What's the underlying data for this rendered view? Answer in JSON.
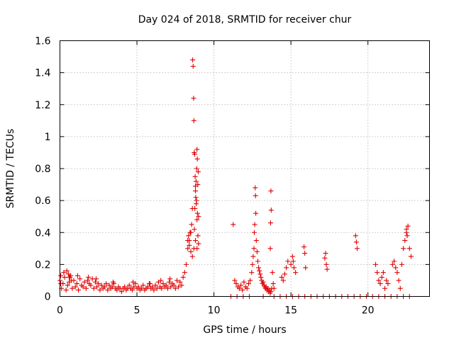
{
  "chart_data": {
    "type": "scatter",
    "title": "Day 024 of 2018, SRMTID for receiver chur",
    "xlabel": "GPS time / hours",
    "ylabel": "SRMTID / TECUs",
    "xlim": [
      0,
      24
    ],
    "ylim": [
      0,
      1.6
    ],
    "xticks": [
      0,
      5,
      10,
      15,
      20
    ],
    "xtick_labels": [
      "0",
      "5",
      "10",
      "15",
      "20"
    ],
    "yticks": [
      0,
      0.2,
      0.4,
      0.6,
      0.8,
      1.0,
      1.2,
      1.4,
      1.6
    ],
    "ytick_labels": [
      "0",
      "0.2",
      "0.4",
      "0.6",
      "0.8",
      "1",
      "1.2",
      "1.4",
      "1.6"
    ],
    "grid": true,
    "marker": "+",
    "series": [
      {
        "name": "SRMTID",
        "color": "#e00000",
        "x": [
          0.0,
          0.1,
          0.2,
          0.3,
          0.4,
          0.5,
          0.6,
          0.7,
          0.8,
          0.9,
          1.0,
          1.1,
          1.2,
          1.3,
          1.4,
          1.5,
          1.6,
          1.7,
          1.8,
          1.9,
          2.0,
          2.1,
          2.2,
          2.3,
          2.4,
          2.5,
          2.6,
          2.7,
          2.8,
          2.9,
          3.0,
          3.1,
          3.2,
          3.3,
          3.4,
          3.5,
          3.6,
          3.7,
          3.8,
          3.9,
          4.0,
          4.1,
          4.2,
          4.3,
          4.4,
          4.5,
          4.6,
          4.7,
          4.8,
          4.9,
          5.0,
          5.1,
          5.2,
          5.3,
          5.4,
          5.5,
          5.6,
          5.7,
          5.8,
          5.9,
          6.0,
          6.1,
          6.2,
          6.3,
          6.4,
          6.5,
          6.6,
          6.7,
          6.8,
          6.9,
          7.0,
          7.1,
          7.2,
          7.3,
          7.4,
          7.5,
          7.6,
          7.7,
          7.8,
          7.9,
          8.0,
          8.1,
          8.2,
          8.3,
          8.4,
          8.5,
          8.6,
          8.7,
          8.8,
          8.9,
          9.0,
          0.05,
          0.25,
          0.45,
          0.6,
          0.75,
          1.15,
          1.85,
          2.35,
          3.45,
          4.75,
          5.85,
          6.55,
          7.15,
          0.55,
          0.65,
          0.05,
          8.3,
          8.35,
          8.4,
          8.45,
          8.5,
          8.55,
          8.6,
          8.62,
          8.65,
          8.68,
          8.7,
          8.72,
          8.75,
          8.78,
          8.8,
          8.82,
          8.85,
          8.88,
          8.9,
          8.92,
          8.95,
          8.98,
          9.0,
          8.73,
          8.76,
          8.8,
          8.84,
          8.87,
          8.9,
          8.93,
          8.96,
          11.25,
          11.35,
          11.45,
          11.55,
          11.65,
          11.75,
          11.85,
          11.95,
          12.05,
          12.15,
          12.25,
          12.35,
          12.45,
          12.5,
          12.55,
          12.6,
          12.62,
          12.65,
          12.68,
          12.7,
          12.72,
          12.75,
          12.8,
          12.85,
          12.9,
          12.95,
          13.0,
          13.05,
          13.1,
          13.15,
          13.2,
          13.25,
          13.3,
          13.35,
          13.4,
          13.45,
          13.5,
          13.55,
          13.6,
          13.65,
          13.7,
          13.75,
          13.8,
          13.85,
          13.9,
          13.7,
          13.72,
          13.68,
          13.66,
          14.4,
          14.5,
          14.6,
          14.7,
          14.8,
          15.0,
          15.1,
          15.15,
          15.2,
          15.3,
          15.85,
          15.9,
          15.95,
          17.2,
          17.25,
          17.3,
          17.35,
          19.2,
          19.25,
          19.3,
          20.5,
          20.6,
          20.7,
          20.8,
          20.9,
          21.0,
          21.1,
          21.2,
          21.3,
          21.6,
          21.7,
          21.8,
          21.9,
          22.0,
          22.1,
          22.2,
          22.3,
          22.4,
          22.5,
          22.6,
          22.7,
          22.8,
          22.5,
          22.55,
          11.1,
          11.5,
          11.9,
          12.3,
          13.2,
          13.9,
          14.3,
          14.7,
          15.1,
          15.5,
          15.9,
          16.3,
          16.7,
          17.1,
          17.5,
          17.9,
          18.3,
          18.7,
          19.1,
          19.5,
          19.9,
          20.3,
          20.7,
          21.1,
          21.5,
          21.9,
          22.3,
          22.7
        ],
        "y": [
          0.1,
          0.05,
          0.08,
          0.12,
          0.04,
          0.07,
          0.09,
          0.13,
          0.05,
          0.1,
          0.06,
          0.08,
          0.04,
          0.11,
          0.07,
          0.06,
          0.09,
          0.05,
          0.1,
          0.08,
          0.07,
          0.11,
          0.05,
          0.09,
          0.06,
          0.08,
          0.04,
          0.07,
          0.05,
          0.06,
          0.08,
          0.04,
          0.07,
          0.05,
          0.06,
          0.08,
          0.05,
          0.04,
          0.06,
          0.05,
          0.03,
          0.05,
          0.06,
          0.04,
          0.05,
          0.07,
          0.05,
          0.04,
          0.06,
          0.08,
          0.05,
          0.06,
          0.04,
          0.05,
          0.07,
          0.04,
          0.05,
          0.06,
          0.08,
          0.05,
          0.06,
          0.04,
          0.07,
          0.05,
          0.09,
          0.06,
          0.05,
          0.08,
          0.06,
          0.07,
          0.05,
          0.09,
          0.06,
          0.08,
          0.07,
          0.05,
          0.1,
          0.06,
          0.09,
          0.07,
          0.12,
          0.15,
          0.2,
          0.3,
          0.35,
          0.4,
          0.25,
          0.3,
          0.35,
          0.3,
          0.33,
          0.13,
          0.15,
          0.16,
          0.12,
          0.1,
          0.13,
          0.12,
          0.11,
          0.09,
          0.09,
          0.08,
          0.1,
          0.11,
          0.14,
          0.12,
          0.08,
          0.35,
          0.38,
          0.32,
          0.4,
          0.28,
          0.45,
          0.55,
          1.48,
          1.44,
          1.24,
          1.1,
          0.9,
          0.89,
          0.75,
          0.69,
          0.62,
          0.58,
          0.8,
          0.92,
          0.86,
          0.7,
          0.78,
          0.5,
          0.42,
          0.55,
          0.66,
          0.72,
          0.6,
          0.48,
          0.52,
          0.38,
          0.45,
          0.1,
          0.08,
          0.06,
          0.05,
          0.07,
          0.04,
          0.09,
          0.06,
          0.05,
          0.08,
          0.1,
          0.15,
          0.2,
          0.25,
          0.3,
          0.4,
          0.45,
          0.68,
          0.63,
          0.52,
          0.35,
          0.28,
          0.22,
          0.18,
          0.16,
          0.14,
          0.12,
          0.1,
          0.08,
          0.09,
          0.07,
          0.06,
          0.05,
          0.06,
          0.04,
          0.05,
          0.03,
          0.04,
          0.02,
          0.03,
          0.05,
          0.15,
          0.08,
          0.05,
          0.66,
          0.54,
          0.46,
          0.3,
          0.12,
          0.1,
          0.14,
          0.18,
          0.22,
          0.2,
          0.25,
          0.22,
          0.18,
          0.15,
          0.31,
          0.27,
          0.18,
          0.24,
          0.27,
          0.2,
          0.17,
          0.38,
          0.34,
          0.3,
          0.2,
          0.15,
          0.1,
          0.08,
          0.12,
          0.15,
          0.05,
          0.1,
          0.08,
          0.2,
          0.22,
          0.18,
          0.15,
          0.1,
          0.05,
          0.2,
          0.3,
          0.35,
          0.4,
          0.44,
          0.3,
          0.25,
          0.42,
          0.38,
          0.0,
          0.0,
          0.0,
          0.0,
          0.0,
          0.0,
          0.0,
          0.0,
          0.0,
          0.0,
          0.0,
          0.0,
          0.0,
          0.0,
          0.0,
          0.0,
          0.0,
          0.0,
          0.0,
          0.0,
          0.0,
          0.0,
          0.0,
          0.0,
          0.0,
          0.0,
          0.0,
          0.0
        ]
      }
    ]
  }
}
